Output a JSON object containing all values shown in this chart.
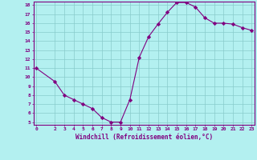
{
  "x": [
    0,
    2,
    3,
    4,
    5,
    6,
    7,
    8,
    9,
    10,
    11,
    12,
    13,
    14,
    15,
    16,
    17,
    18,
    19,
    20,
    21,
    22,
    23
  ],
  "y": [
    11.0,
    9.5,
    8.0,
    7.5,
    7.0,
    6.5,
    5.5,
    5.0,
    5.0,
    7.5,
    12.2,
    14.5,
    15.9,
    17.2,
    18.3,
    18.3,
    17.8,
    16.6,
    16.0,
    16.0,
    15.9,
    15.5,
    15.2
  ],
  "line_color": "#800080",
  "marker": "D",
  "marker_size": 2.2,
  "bg_color": "#b3f0f0",
  "grid_color": "#88cccc",
  "xlabel": "Windchill (Refroidissement éolien,°C)",
  "ylabel": "",
  "ylim": [
    5,
    18
  ],
  "xlim": [
    -0.3,
    23.3
  ],
  "yticks": [
    5,
    6,
    7,
    8,
    9,
    10,
    11,
    12,
    13,
    14,
    15,
    16,
    17,
    18
  ],
  "xticks": [
    0,
    2,
    3,
    4,
    5,
    6,
    7,
    8,
    9,
    10,
    11,
    12,
    13,
    14,
    15,
    16,
    17,
    18,
    19,
    20,
    21,
    22,
    23
  ],
  "axis_color": "#800080",
  "tick_color": "#800080",
  "label_color": "#800080"
}
